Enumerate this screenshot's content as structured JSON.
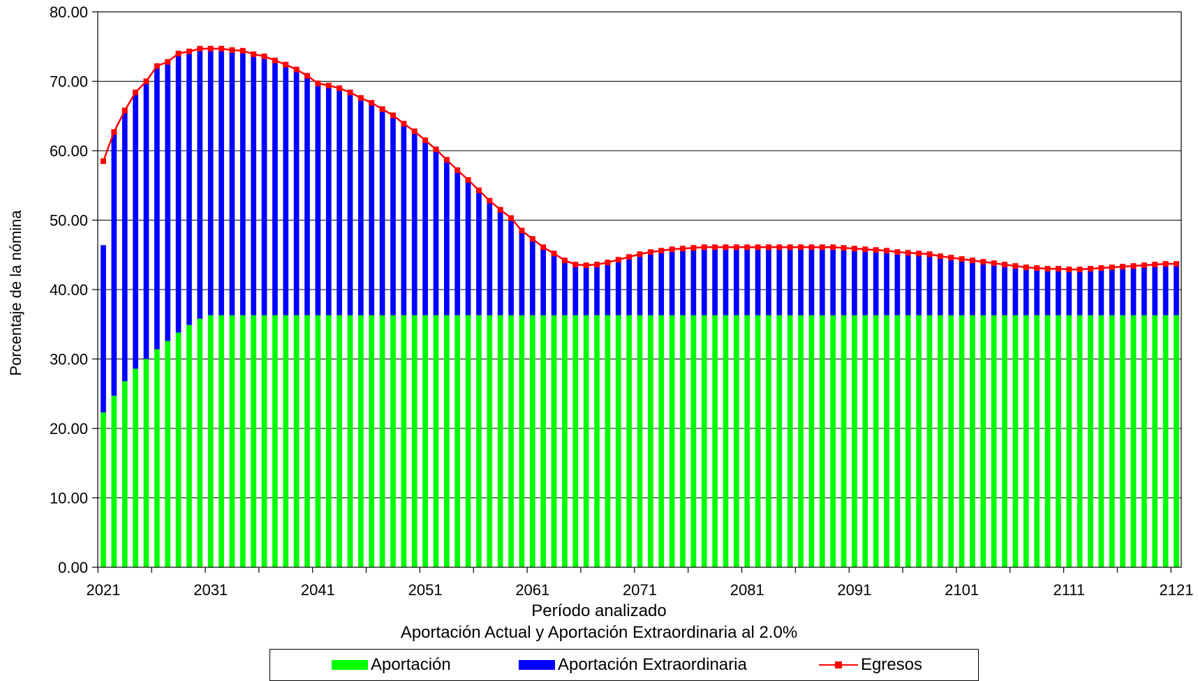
{
  "chart_data": {
    "type": "bar",
    "stacked": true,
    "xlabel": "Período analizado",
    "subtitle": "Aportación Actual y Aportación Extraordinaria al 2.0%",
    "ylabel": "Porcentaje de la nómina",
    "ylim": [
      0,
      80
    ],
    "yticks": [
      "0.00",
      "10.00",
      "20.00",
      "30.00",
      "40.00",
      "50.00",
      "60.00",
      "70.00",
      "80.00"
    ],
    "xticks": [
      "2021",
      "2031",
      "2041",
      "2051",
      "2061",
      "2071",
      "2081",
      "2091",
      "2101",
      "2111",
      "2121"
    ],
    "x_range": [
      2021,
      2121
    ],
    "grid": "horizontal",
    "legend": "bottom",
    "series": [
      {
        "name": "Aportación",
        "type": "bar",
        "color": "#00ff00",
        "values": [
          22.3,
          24.7,
          26.8,
          28.6,
          30.0,
          31.4,
          32.6,
          33.8,
          34.9,
          35.8,
          36.3,
          36.3,
          36.3,
          36.3,
          36.3,
          36.3,
          36.3,
          36.3,
          36.3,
          36.3,
          36.3,
          36.3,
          36.3,
          36.3,
          36.3,
          36.3,
          36.3,
          36.3,
          36.3,
          36.3,
          36.3,
          36.3,
          36.3,
          36.3,
          36.3,
          36.3,
          36.3,
          36.3,
          36.3,
          36.3,
          36.3,
          36.3,
          36.3,
          36.3,
          36.3,
          36.3,
          36.3,
          36.3,
          36.3,
          36.3,
          36.3,
          36.3,
          36.3,
          36.3,
          36.3,
          36.3,
          36.3,
          36.3,
          36.3,
          36.3,
          36.3,
          36.3,
          36.3,
          36.3,
          36.3,
          36.3,
          36.3,
          36.3,
          36.3,
          36.3,
          36.3,
          36.3,
          36.3,
          36.3,
          36.3,
          36.3,
          36.3,
          36.3,
          36.3,
          36.3,
          36.3,
          36.3,
          36.3,
          36.3,
          36.3,
          36.3,
          36.3,
          36.3,
          36.3,
          36.3,
          36.3,
          36.3,
          36.3,
          36.3,
          36.3,
          36.3,
          36.3,
          36.3,
          36.3,
          36.3,
          36.3
        ]
      },
      {
        "name": "Aportación Extraordinaria",
        "type": "bar",
        "color": "#0000ff",
        "values": [
          24.1,
          38.0,
          39.0,
          39.8,
          40.0,
          40.8,
          40.2,
          40.2,
          39.4,
          38.9,
          38.4,
          38.4,
          38.2,
          38.1,
          37.6,
          37.3,
          36.7,
          36.1,
          35.4,
          34.5,
          33.4,
          33.1,
          32.7,
          32.1,
          31.3,
          30.6,
          29.7,
          28.8,
          27.6,
          26.5,
          25.2,
          23.9,
          22.4,
          20.9,
          19.5,
          18.0,
          16.5,
          15.2,
          14.0,
          12.2,
          11.0,
          9.8,
          8.9,
          7.9,
          7.3,
          7.2,
          7.3,
          7.6,
          8.0,
          8.4,
          8.8,
          9.1,
          9.3,
          9.5,
          9.6,
          9.7,
          9.8,
          9.8,
          9.8,
          9.8,
          9.8,
          9.8,
          9.8,
          9.8,
          9.8,
          9.8,
          9.8,
          9.8,
          9.8,
          9.7,
          9.6,
          9.5,
          9.4,
          9.3,
          9.1,
          9.0,
          8.9,
          8.8,
          8.5,
          8.3,
          8.1,
          7.9,
          7.7,
          7.5,
          7.3,
          7.1,
          6.9,
          6.8,
          6.7,
          6.7,
          6.6,
          6.6,
          6.7,
          6.8,
          6.9,
          7.0,
          7.1,
          7.2,
          7.3,
          7.4,
          7.4
        ]
      },
      {
        "name": "Egresos",
        "type": "line",
        "color": "#ff0000",
        "values": [
          58.5,
          62.7,
          65.8,
          68.4,
          70.0,
          72.2,
          72.8,
          74.0,
          74.3,
          74.7,
          74.7,
          74.7,
          74.5,
          74.4,
          73.9,
          73.6,
          73.0,
          72.4,
          71.7,
          70.8,
          69.7,
          69.4,
          69.0,
          68.4,
          67.6,
          66.9,
          66.0,
          65.1,
          63.9,
          62.8,
          61.5,
          60.2,
          58.7,
          57.2,
          55.8,
          54.3,
          52.8,
          51.5,
          50.3,
          48.5,
          47.3,
          46.1,
          45.2,
          44.2,
          43.6,
          43.5,
          43.6,
          43.9,
          44.3,
          44.7,
          45.1,
          45.4,
          45.6,
          45.8,
          45.9,
          46.0,
          46.1,
          46.1,
          46.1,
          46.1,
          46.1,
          46.1,
          46.1,
          46.1,
          46.1,
          46.1,
          46.1,
          46.1,
          46.1,
          46.0,
          45.9,
          45.8,
          45.7,
          45.6,
          45.4,
          45.3,
          45.2,
          45.1,
          44.8,
          44.6,
          44.4,
          44.2,
          44.0,
          43.8,
          43.6,
          43.4,
          43.2,
          43.1,
          43.0,
          43.0,
          42.9,
          42.9,
          43.0,
          43.1,
          43.2,
          43.3,
          43.4,
          43.5,
          43.6,
          43.7,
          43.7
        ]
      }
    ]
  }
}
